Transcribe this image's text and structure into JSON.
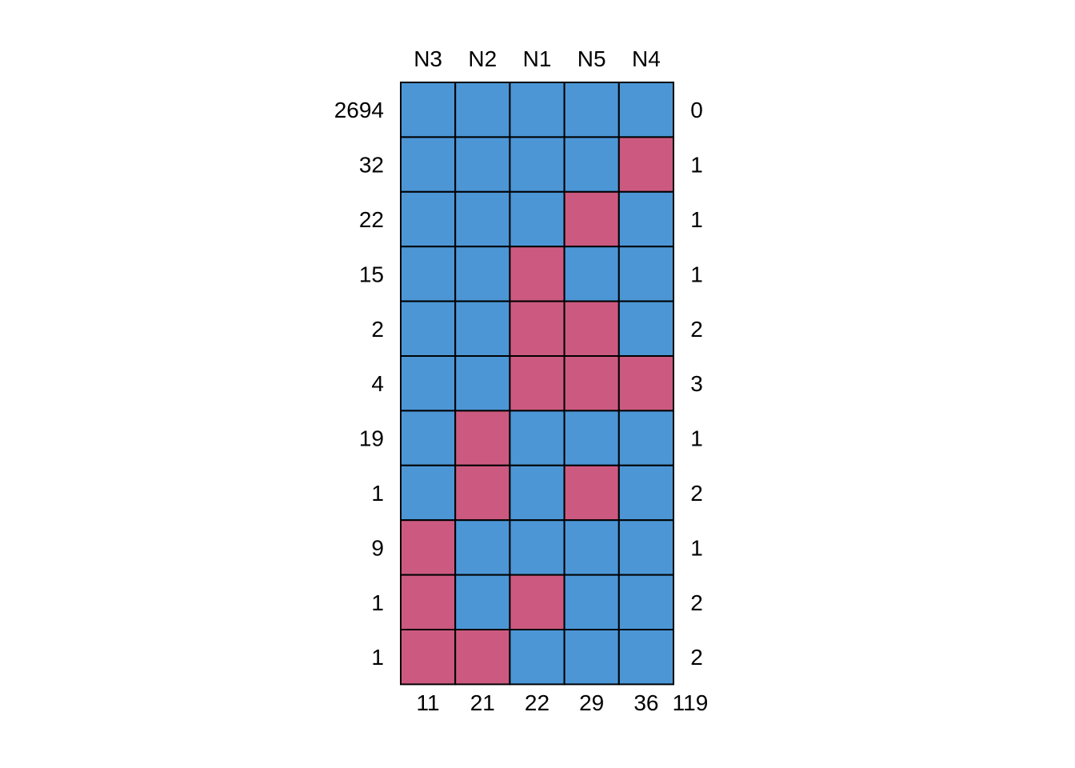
{
  "chart_data": {
    "type": "heatmap",
    "title": "",
    "columns": [
      "N3",
      "N2",
      "N1",
      "N5",
      "N4"
    ],
    "rows": [
      {
        "count": "2694",
        "pattern": [
          1,
          1,
          1,
          1,
          1
        ],
        "n_missing": "0"
      },
      {
        "count": "32",
        "pattern": [
          1,
          1,
          1,
          1,
          0
        ],
        "n_missing": "1"
      },
      {
        "count": "22",
        "pattern": [
          1,
          1,
          1,
          0,
          1
        ],
        "n_missing": "1"
      },
      {
        "count": "15",
        "pattern": [
          1,
          1,
          0,
          1,
          1
        ],
        "n_missing": "1"
      },
      {
        "count": "2",
        "pattern": [
          1,
          1,
          0,
          0,
          1
        ],
        "n_missing": "2"
      },
      {
        "count": "4",
        "pattern": [
          1,
          1,
          0,
          0,
          0
        ],
        "n_missing": "3"
      },
      {
        "count": "19",
        "pattern": [
          1,
          0,
          1,
          1,
          1
        ],
        "n_missing": "1"
      },
      {
        "count": "1",
        "pattern": [
          1,
          0,
          1,
          0,
          1
        ],
        "n_missing": "2"
      },
      {
        "count": "9",
        "pattern": [
          0,
          1,
          1,
          1,
          1
        ],
        "n_missing": "1"
      },
      {
        "count": "1",
        "pattern": [
          0,
          1,
          0,
          1,
          1
        ],
        "n_missing": "2"
      },
      {
        "count": "1",
        "pattern": [
          0,
          0,
          1,
          1,
          1
        ],
        "n_missing": "2"
      }
    ],
    "column_missing_totals": [
      "11",
      "21",
      "22",
      "29",
      "36"
    ],
    "grand_total_missing": "119",
    "colors": {
      "observed": "#4c96d6",
      "missing": "#cc5a80",
      "border": "#000000"
    }
  }
}
